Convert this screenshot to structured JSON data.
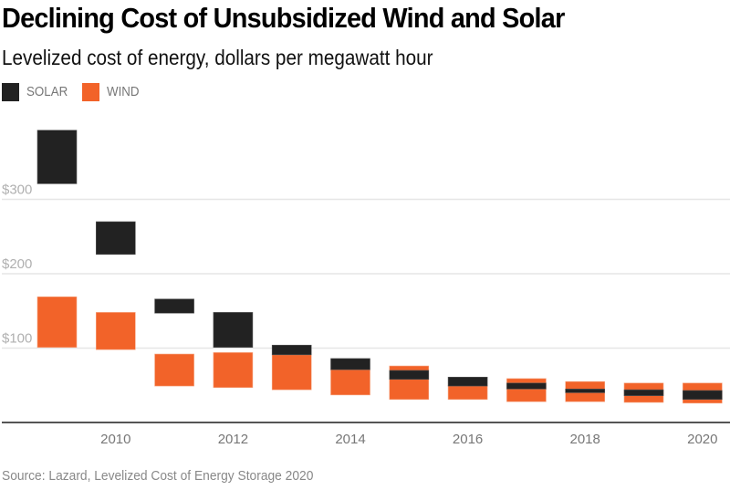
{
  "chart_data": {
    "type": "bar",
    "subtype": "floating-range",
    "title": "Declining Cost of Unsubsidized Wind and Solar",
    "subtitle": "Levelized cost of energy, dollars per megawatt hour",
    "xlabel": "",
    "ylabel": "",
    "source": "Source: Lazard, Levelized Cost of Energy Storage 2020",
    "x": [
      2009,
      2010,
      2011,
      2012,
      2013,
      2014,
      2015,
      2016,
      2017,
      2018,
      2019,
      2020
    ],
    "x_tick_labels": [
      "2010",
      "2012",
      "2014",
      "2016",
      "2018",
      "2020"
    ],
    "x_tick_values": [
      2010,
      2012,
      2014,
      2016,
      2018,
      2020
    ],
    "y_tick_labels": [
      "$100",
      "$200",
      "$300"
    ],
    "y_tick_values": [
      100,
      200,
      300
    ],
    "ylim": [
      0,
      400
    ],
    "grid": true,
    "legend_position": "top-left",
    "series": [
      {
        "name": "WIND",
        "color": "#f26329",
        "low": [
          101,
          98,
          49,
          47,
          44,
          37,
          31,
          31,
          28,
          28,
          27,
          26
        ],
        "high": [
          169,
          148,
          92,
          94,
          91,
          71,
          76,
          50,
          59,
          55,
          53,
          53
        ]
      },
      {
        "name": "SOLAR",
        "color": "#222222",
        "low": [
          321,
          226,
          147,
          101,
          91,
          71,
          58,
          49,
          45,
          40,
          36,
          31
        ],
        "high": [
          393,
          270,
          166,
          148,
          104,
          86,
          70,
          61,
          53,
          45,
          44,
          43
        ]
      }
    ]
  },
  "legend": [
    {
      "label": "SOLAR",
      "color": "#222222"
    },
    {
      "label": "WIND",
      "color": "#f26329"
    }
  ]
}
